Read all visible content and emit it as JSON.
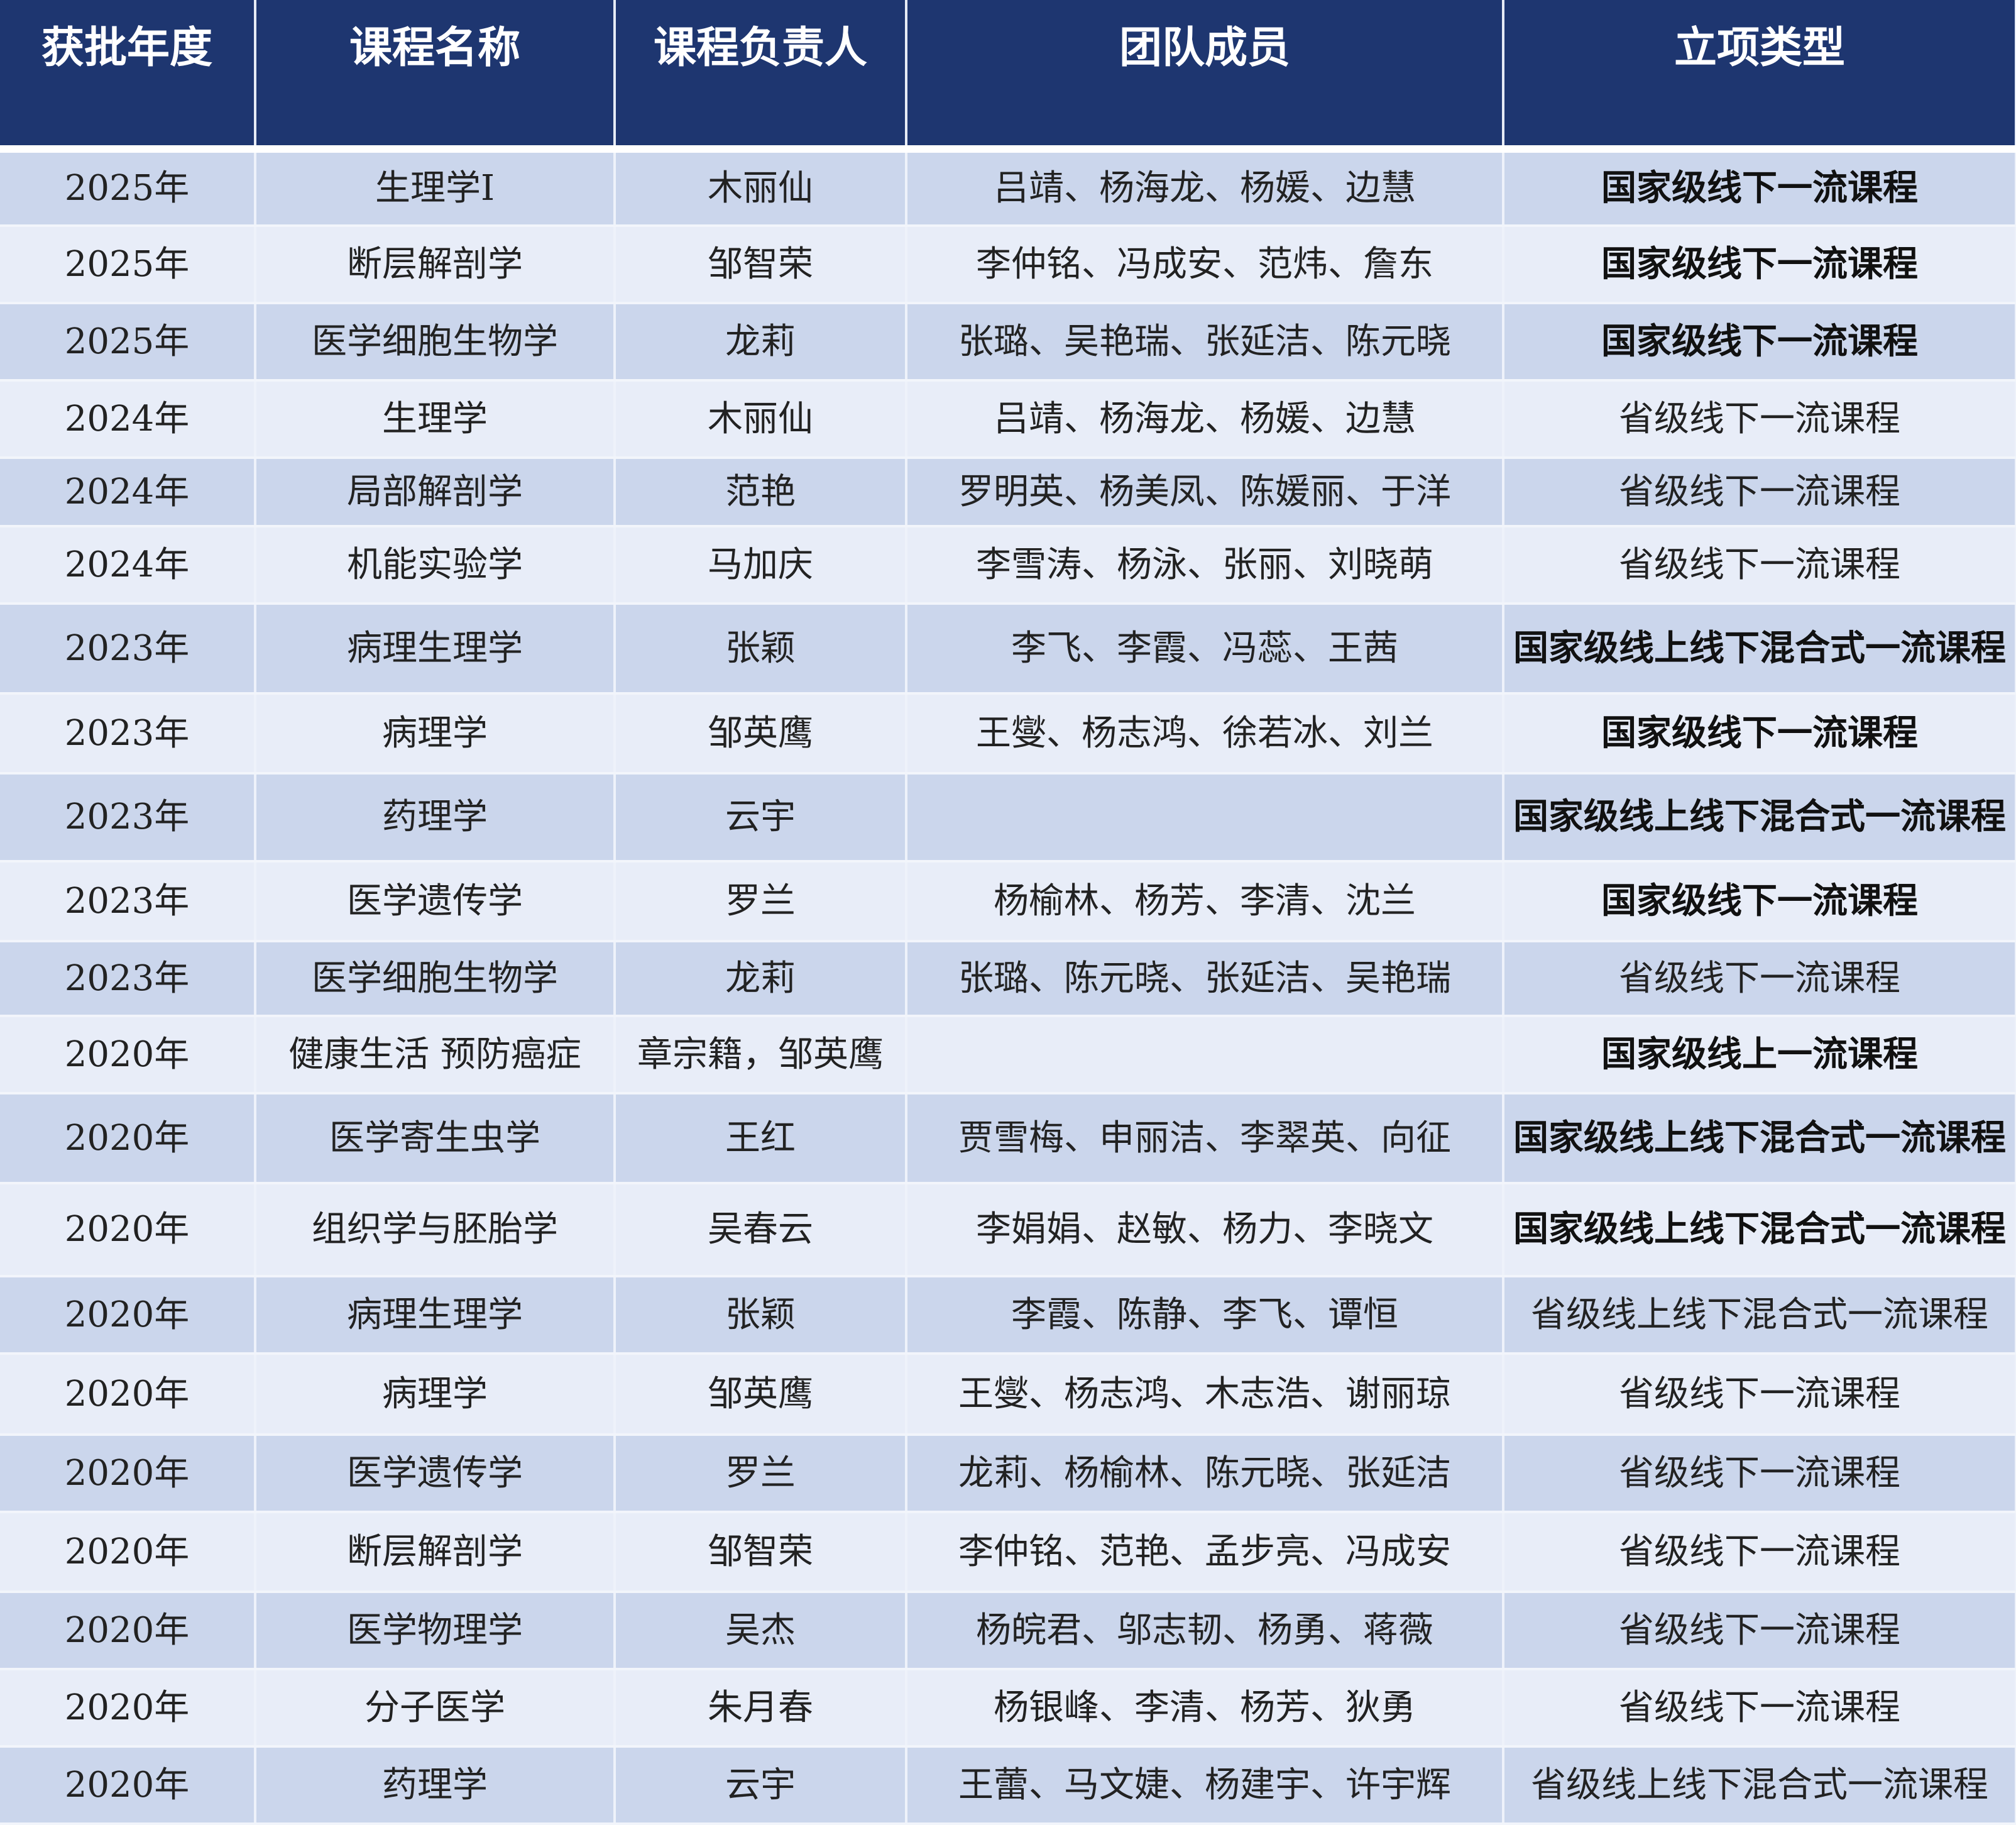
{
  "headers": [
    "获批年度",
    "课程名称",
    "课程负责人",
    "团队成员",
    "立项类型"
  ],
  "rows": [
    {
      "year": "2025年",
      "course": "生理学I",
      "lead": "木丽仙",
      "team": "吕靖、杨海龙、杨媛、边慧",
      "type": "国家级线下一流课程",
      "national": true
    },
    {
      "year": "2025年",
      "course": "断层解剖学",
      "lead": "邹智荣",
      "team": "李仲铭、冯成安、范炜、詹东",
      "type": "国家级线下一流课程",
      "national": true
    },
    {
      "year": "2025年",
      "course": "医学细胞生物学",
      "lead": "龙莉",
      "team": "张璐、吴艳瑞、张延洁、陈元晓",
      "type": "国家级线下一流课程",
      "national": true
    },
    {
      "year": "2024年",
      "course": "生理学",
      "lead": "木丽仙",
      "team": "吕靖、杨海龙、杨媛、边慧",
      "type": "省级线下一流课程",
      "national": false
    },
    {
      "year": "2024年",
      "course": "局部解剖学",
      "lead": "范艳",
      "team": "罗明英、杨美凤、陈媛丽、于洋",
      "type": "省级线下一流课程",
      "national": false
    },
    {
      "year": "2024年",
      "course": "机能实验学",
      "lead": "马加庆",
      "team": "李雪涛、杨泳、张丽、刘晓萌",
      "type": "省级线下一流课程",
      "national": false
    },
    {
      "year": "2023年",
      "course": "病理生理学",
      "lead": "张颖",
      "team": "李飞、李霞、冯蕊、王茜",
      "type": "国家级线上线下混合式一流课程",
      "national": true
    },
    {
      "year": "2023年",
      "course": "病理学",
      "lead": "邹英鹰",
      "team": "王燮、杨志鸿、徐若冰、刘兰",
      "type": "国家级线下一流课程",
      "national": true
    },
    {
      "year": "2023年",
      "course": "药理学",
      "lead": "云宇",
      "team": "",
      "type": "国家级线上线下混合式一流课程",
      "national": true
    },
    {
      "year": "2023年",
      "course": "医学遗传学",
      "lead": "罗兰",
      "team": "杨榆林、杨芳、李清、沈兰",
      "type": "国家级线下一流课程",
      "national": true
    },
    {
      "year": "2023年",
      "course": "医学细胞生物学",
      "lead": "龙莉",
      "team": "张璐、陈元晓、张延洁、吴艳瑞",
      "type": "省级线下一流课程",
      "national": false
    },
    {
      "year": "2020年",
      "course": "健康生活  预防癌症",
      "lead": "章宗籍，邹英鹰",
      "team": "",
      "type": "国家级线上一流课程",
      "national": true
    },
    {
      "year": "2020年",
      "course": "医学寄生虫学",
      "lead": "王红",
      "team": "贾雪梅、申丽洁、李翠英、向征",
      "type": "国家级线上线下混合式一流课程",
      "national": true
    },
    {
      "year": "2020年",
      "course": "组织学与胚胎学",
      "lead": "吴春云",
      "team": "李娟娟、赵敏、杨力、李晓文",
      "type": "国家级线上线下混合式一流课程",
      "national": true
    },
    {
      "year": "2020年",
      "course": "病理生理学",
      "lead": "张颖",
      "team": "李霞、陈静、李飞、谭恒",
      "type": "省级线上线下混合式一流课程",
      "national": false
    },
    {
      "year": "2020年",
      "course": "病理学",
      "lead": "邹英鹰",
      "team": "王燮、杨志鸿、木志浩、谢丽琼",
      "type": "省级线下一流课程",
      "national": false
    },
    {
      "year": "2020年",
      "course": "医学遗传学",
      "lead": "罗兰",
      "team": "龙莉、杨榆林、陈元晓、张延洁",
      "type": "省级线下一流课程",
      "national": false
    },
    {
      "year": "2020年",
      "course": "断层解剖学",
      "lead": "邹智荣",
      "team": "李仲铭、范艳、孟步亮、冯成安",
      "type": "省级线下一流课程",
      "national": false
    },
    {
      "year": "2020年",
      "course": "医学物理学",
      "lead": "吴杰",
      "team": "杨皖君、邬志韧、杨勇、蒋薇",
      "type": "省级线下一流课程",
      "national": false
    },
    {
      "year": "2020年",
      "course": "分子医学",
      "lead": "朱月春",
      "team": "杨银峰、李清、杨芳、狄勇",
      "type": "省级线下一流课程",
      "national": false
    },
    {
      "year": "2020年",
      "course": "药理学",
      "lead": "云宇",
      "team": "王蕾、马文婕、杨建宇、许宇辉",
      "type": "省级线上线下混合式一流课程",
      "national": false
    }
  ]
}
